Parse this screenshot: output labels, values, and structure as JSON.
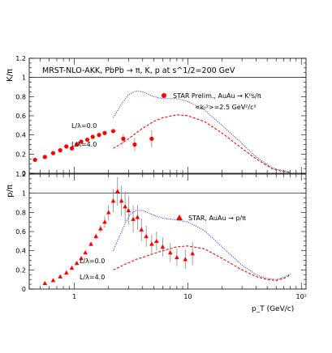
{
  "chart_data": [
    {
      "type": "scatter",
      "panel": "top",
      "title": "MRST-NLO-AKK, PbPb → π, K, p at s^1/2=200 GeV",
      "ylabel": "K/π",
      "x_scale": "log",
      "xlim": [
        0.4,
        110
      ],
      "ylim": [
        0,
        1.2
      ],
      "yticks": [
        "0",
        "0.2",
        "0.4",
        "0.6",
        "0.8",
        "1",
        "1.2"
      ],
      "reference_line_y": 1.0,
      "legend_label": "STAR Prelim., AuAu → K⁰s/π",
      "kt_label": "<kₜ²>=2.5 GeV²/c²",
      "curve_labels": [
        "L/λ=0.0",
        "L/λ=4.0"
      ],
      "series": [
        {
          "name": "STAR Prelim., AuAu → K⁰s/π",
          "marker": "circle",
          "color": "#ff0000",
          "x": [
            0.45,
            0.55,
            0.65,
            0.75,
            0.85,
            0.95,
            1.05,
            1.15,
            1.3,
            1.45,
            1.65,
            1.85,
            2.2,
            2.7,
            3.4,
            4.8
          ],
          "y": [
            0.14,
            0.17,
            0.21,
            0.24,
            0.28,
            0.26,
            0.3,
            0.33,
            0.35,
            0.38,
            0.4,
            0.42,
            0.44,
            0.36,
            0.3,
            0.36
          ],
          "yerr": [
            0.005,
            0.005,
            0.005,
            0.005,
            0.005,
            0.005,
            0.006,
            0.006,
            0.007,
            0.008,
            0.01,
            0.012,
            0.02,
            0.05,
            0.07,
            0.09
          ]
        },
        {
          "name": "L/λ=0.0",
          "style": "dotted",
          "color": "#2e2efc",
          "x": [
            2.2,
            2.6,
            3.0,
            3.5,
            4.0,
            5.0,
            6.0,
            8.0,
            10.0,
            14.0,
            20.0,
            30.0,
            40.0,
            55.0,
            65.0,
            80.0
          ],
          "y": [
            0.58,
            0.72,
            0.82,
            0.86,
            0.85,
            0.8,
            0.78,
            0.78,
            0.75,
            0.66,
            0.5,
            0.31,
            0.17,
            0.06,
            0.03,
            0.01
          ]
        },
        {
          "name": "L/λ=4.0",
          "style": "dashed",
          "color": "#ff0000",
          "x": [
            2.2,
            2.6,
            3.0,
            3.5,
            4.0,
            5.0,
            6.0,
            8.0,
            10.0,
            14.0,
            20.0,
            30.0,
            40.0,
            55.0,
            65.0,
            80.0
          ],
          "y": [
            0.26,
            0.31,
            0.36,
            0.42,
            0.47,
            0.54,
            0.58,
            0.61,
            0.6,
            0.54,
            0.42,
            0.26,
            0.15,
            0.05,
            0.025,
            0.01
          ]
        }
      ]
    },
    {
      "type": "scatter",
      "panel": "bottom",
      "ylabel": "p/π",
      "xlabel": "p_T (GeV/c)",
      "x_scale": "log",
      "xlim": [
        0.4,
        110
      ],
      "ylim": [
        0,
        1.2
      ],
      "xticks": [
        "1",
        "10",
        "10²"
      ],
      "yticks": [
        "0",
        "0.2",
        "0.4",
        "0.6",
        "0.8",
        "1",
        "1.2"
      ],
      "reference_line_y": 1.0,
      "legend_label": "STAR, AuAu → p/π",
      "curve_labels": [
        "L/λ=0.0",
        "L/λ=4.0"
      ],
      "series": [
        {
          "name": "STAR, AuAu → p/π",
          "marker": "triangle",
          "color": "#ff0000",
          "x": [
            0.55,
            0.65,
            0.75,
            0.85,
            0.95,
            1.05,
            1.15,
            1.25,
            1.4,
            1.55,
            1.7,
            1.85,
            2.0,
            2.2,
            2.4,
            2.6,
            2.8,
            3.0,
            3.3,
            3.6,
            3.9,
            4.3,
            4.8,
            5.3,
            6.0,
            7.0,
            8.0,
            9.5,
            11.0
          ],
          "y": [
            0.06,
            0.09,
            0.13,
            0.17,
            0.22,
            0.27,
            0.32,
            0.38,
            0.47,
            0.55,
            0.63,
            0.7,
            0.8,
            0.92,
            1.02,
            0.92,
            0.86,
            0.82,
            0.73,
            0.75,
            0.62,
            0.55,
            0.47,
            0.5,
            0.44,
            0.38,
            0.33,
            0.31,
            0.37
          ],
          "yerr": [
            0.005,
            0.005,
            0.006,
            0.007,
            0.008,
            0.01,
            0.012,
            0.015,
            0.02,
            0.03,
            0.04,
            0.06,
            0.08,
            0.12,
            0.15,
            0.16,
            0.16,
            0.15,
            0.14,
            0.13,
            0.12,
            0.11,
            0.1,
            0.1,
            0.1,
            0.1,
            0.09,
            0.1,
            0.12
          ]
        },
        {
          "name": "L/λ=0.0",
          "style": "dotted",
          "color": "#2e2efc",
          "x": [
            2.2,
            2.5,
            2.8,
            3.1,
            3.5,
            4.0,
            5.0,
            6.0,
            8.0,
            10.0,
            14.0,
            20.0,
            30.0,
            40.0,
            50.0,
            60.0,
            70.0,
            80.0
          ],
          "y": [
            0.4,
            0.55,
            0.68,
            0.78,
            0.82,
            0.82,
            0.77,
            0.74,
            0.72,
            0.7,
            0.61,
            0.44,
            0.25,
            0.15,
            0.11,
            0.1,
            0.12,
            0.16
          ]
        },
        {
          "name": "L/λ=4.0",
          "style": "dashed",
          "color": "#ff0000",
          "x": [
            2.2,
            2.5,
            2.8,
            3.1,
            3.5,
            4.0,
            5.0,
            6.0,
            8.0,
            10.0,
            14.0,
            20.0,
            30.0,
            40.0,
            50.0,
            60.0,
            70.0,
            80.0
          ],
          "y": [
            0.2,
            0.23,
            0.26,
            0.28,
            0.31,
            0.33,
            0.37,
            0.4,
            0.44,
            0.45,
            0.42,
            0.32,
            0.2,
            0.13,
            0.1,
            0.09,
            0.11,
            0.15
          ]
        }
      ]
    }
  ]
}
